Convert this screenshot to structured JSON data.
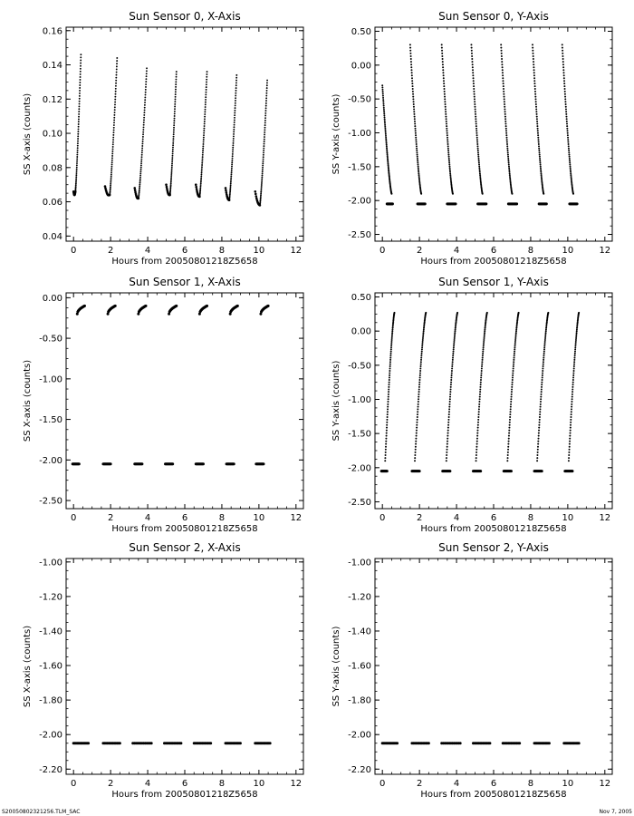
{
  "footer": {
    "left": "S20050802321256.TLM_SAC",
    "right": "Nov  7, 2005"
  },
  "chart_data": [
    {
      "type": "scatter",
      "title": "Sun Sensor 0, X-Axis",
      "xlabel": "Hours from 20050801218Z5658",
      "ylabel": "SS X-axis (counts)",
      "xlim": [
        -0.4,
        12.4
      ],
      "ylim": [
        0.037,
        0.162
      ],
      "xticks": [
        0,
        2,
        4,
        6,
        8,
        10,
        12
      ],
      "xtick_labels": [
        "0",
        "2",
        "4",
        "6",
        "8",
        "10",
        "12"
      ],
      "yticks": [
        0.04,
        0.06,
        0.08,
        0.1,
        0.12,
        0.14,
        0.16
      ],
      "ytick_labels": [
        "0.04",
        "0.06",
        "0.08",
        "0.10",
        "0.12",
        "0.14",
        "0.16"
      ],
      "segments": [
        {
          "dip": [
            0.0,
            0.1,
            0.066,
            0.066
          ],
          "rise": [
            0.1,
            0.4,
            0.066,
            0.146
          ]
        },
        {
          "dip": [
            1.7,
            1.95,
            0.069,
            0.064
          ],
          "rise": [
            1.95,
            2.35,
            0.064,
            0.144
          ]
        },
        {
          "dip": [
            3.3,
            3.5,
            0.068,
            0.062
          ],
          "rise": [
            3.5,
            3.95,
            0.062,
            0.138
          ]
        },
        {
          "dip": [
            5.0,
            5.2,
            0.07,
            0.064
          ],
          "rise": [
            5.2,
            5.55,
            0.064,
            0.136
          ]
        },
        {
          "dip": [
            6.6,
            6.8,
            0.07,
            0.063
          ],
          "rise": [
            6.8,
            7.2,
            0.063,
            0.136
          ]
        },
        {
          "dip": [
            8.2,
            8.4,
            0.068,
            0.061
          ],
          "rise": [
            8.4,
            8.8,
            0.061,
            0.134
          ]
        },
        {
          "dip": [
            9.8,
            10.05,
            0.066,
            0.058
          ],
          "rise": [
            10.05,
            10.45,
            0.058,
            0.131
          ]
        }
      ]
    },
    {
      "type": "scatter",
      "title": "Sun Sensor 0, Y-Axis",
      "xlabel": "Hours from 20050801218Z5658",
      "ylabel": "SS Y-axis (counts)",
      "xlim": [
        -0.4,
        12.4
      ],
      "ylim": [
        -2.6,
        0.56
      ],
      "xticks": [
        0,
        2,
        4,
        6,
        8,
        10,
        12
      ],
      "xtick_labels": [
        "0",
        "2",
        "4",
        "6",
        "8",
        "10",
        "12"
      ],
      "yticks": [
        0.5,
        0.0,
        -0.5,
        -1.0,
        -1.5,
        -2.0,
        -2.5
      ],
      "ytick_labels": [
        "0.50",
        "0.00",
        "-0.50",
        "-1.00",
        "-1.50",
        "-2.00",
        "-2.50"
      ],
      "curves": [
        {
          "x": [
            0.0,
            0.5
          ],
          "y": [
            -0.3,
            -1.9
          ]
        },
        {
          "x": [
            1.5,
            2.1
          ],
          "y": [
            0.3,
            -1.9
          ]
        },
        {
          "x": [
            3.2,
            3.8
          ],
          "y": [
            0.3,
            -1.9
          ]
        },
        {
          "x": [
            4.8,
            5.4
          ],
          "y": [
            0.3,
            -1.9
          ]
        },
        {
          "x": [
            6.4,
            7.0
          ],
          "y": [
            0.3,
            -1.9
          ]
        },
        {
          "x": [
            8.1,
            8.7
          ],
          "y": [
            0.3,
            -1.9
          ]
        },
        {
          "x": [
            9.7,
            10.3
          ],
          "y": [
            0.3,
            -1.9
          ]
        }
      ],
      "floor": {
        "y": -2.05,
        "ranges": [
          [
            0.25,
            0.55
          ],
          [
            1.9,
            2.3
          ],
          [
            3.5,
            3.95
          ],
          [
            5.15,
            5.6
          ],
          [
            6.8,
            7.25
          ],
          [
            8.45,
            8.85
          ],
          [
            10.1,
            10.5
          ]
        ]
      }
    },
    {
      "type": "scatter",
      "title": "Sun Sensor 1, X-Axis",
      "xlabel": "Hours from 20050801218Z5658",
      "ylabel": "SS X-axis (counts)",
      "xlim": [
        -0.4,
        12.4
      ],
      "ylim": [
        -2.6,
        0.06
      ],
      "xticks": [
        0,
        2,
        4,
        6,
        8,
        10,
        12
      ],
      "xtick_labels": [
        "0",
        "2",
        "4",
        "6",
        "8",
        "10",
        "12"
      ],
      "yticks": [
        0.0,
        -0.5,
        -1.0,
        -1.5,
        -2.0,
        -2.5
      ],
      "ytick_labels": [
        "0.00",
        "-0.50",
        "-1.00",
        "-1.50",
        "-2.00",
        "-2.50"
      ],
      "arcs": [
        {
          "x0": 0.2,
          "x1": 0.6,
          "y0": -0.2,
          "y1": -0.1
        },
        {
          "x0": 1.85,
          "x1": 2.25,
          "y0": -0.2,
          "y1": -0.1
        },
        {
          "x0": 3.5,
          "x1": 3.9,
          "y0": -0.2,
          "y1": -0.1
        },
        {
          "x0": 5.15,
          "x1": 5.55,
          "y0": -0.2,
          "y1": -0.1
        },
        {
          "x0": 6.8,
          "x1": 7.2,
          "y0": -0.2,
          "y1": -0.1
        },
        {
          "x0": 8.45,
          "x1": 8.85,
          "y0": -0.2,
          "y1": -0.1
        },
        {
          "x0": 10.1,
          "x1": 10.5,
          "y0": -0.2,
          "y1": -0.1
        }
      ],
      "floor": {
        "y": -2.05,
        "ranges": [
          [
            -0.05,
            0.3
          ],
          [
            1.6,
            2.0
          ],
          [
            3.3,
            3.7
          ],
          [
            4.95,
            5.35
          ],
          [
            6.6,
            7.0
          ],
          [
            8.25,
            8.65
          ],
          [
            9.85,
            10.25
          ]
        ]
      }
    },
    {
      "type": "scatter",
      "title": "Sun Sensor 1, Y-Axis",
      "xlabel": "Hours from 20050801218Z5658",
      "ylabel": "SS Y-axis (counts)",
      "xlim": [
        -0.4,
        12.4
      ],
      "ylim": [
        -2.6,
        0.56
      ],
      "xticks": [
        0,
        2,
        4,
        6,
        8,
        10,
        12
      ],
      "xtick_labels": [
        "0",
        "2",
        "4",
        "6",
        "8",
        "10",
        "12"
      ],
      "yticks": [
        0.5,
        0.0,
        -0.5,
        -1.0,
        -1.5,
        -2.0,
        -2.5
      ],
      "ytick_labels": [
        "0.50",
        "0.00",
        "-0.50",
        "-1.00",
        "-1.50",
        "-2.00",
        "-2.50"
      ],
      "curves": [
        {
          "x": [
            0.15,
            0.65
          ],
          "y": [
            -1.9,
            0.27
          ]
        },
        {
          "x": [
            1.75,
            2.35
          ],
          "y": [
            -1.9,
            0.27
          ]
        },
        {
          "x": [
            3.45,
            4.05
          ],
          "y": [
            -1.9,
            0.27
          ]
        },
        {
          "x": [
            5.05,
            5.65
          ],
          "y": [
            -1.9,
            0.27
          ]
        },
        {
          "x": [
            6.75,
            7.35
          ],
          "y": [
            -1.9,
            0.27
          ]
        },
        {
          "x": [
            8.35,
            8.95
          ],
          "y": [
            -1.9,
            0.27
          ]
        },
        {
          "x": [
            10.05,
            10.6
          ],
          "y": [
            -1.9,
            0.27
          ]
        }
      ],
      "floor": {
        "y": -2.05,
        "ranges": [
          [
            -0.05,
            0.25
          ],
          [
            1.6,
            2.0
          ],
          [
            3.25,
            3.65
          ],
          [
            4.9,
            5.3
          ],
          [
            6.55,
            6.95
          ],
          [
            8.2,
            8.6
          ],
          [
            9.85,
            10.25
          ]
        ]
      }
    },
    {
      "type": "scatter",
      "title": "Sun Sensor 2, X-Axis",
      "xlabel": "Hours from 20050801218Z5658",
      "ylabel": "SS X-axis (counts)",
      "xlim": [
        -0.4,
        12.4
      ],
      "ylim": [
        -2.23,
        -0.98
      ],
      "xticks": [
        0,
        2,
        4,
        6,
        8,
        10,
        12
      ],
      "xtick_labels": [
        "0",
        "2",
        "4",
        "6",
        "8",
        "10",
        "12"
      ],
      "yticks": [
        -1.0,
        -1.2,
        -1.4,
        -1.6,
        -1.8,
        -2.0,
        -2.2
      ],
      "ytick_labels": [
        "-1.00",
        "-1.20",
        "-1.40",
        "-1.60",
        "-1.80",
        "-2.00",
        "-2.20"
      ],
      "floor": {
        "y": -2.05,
        "ranges": [
          [
            0.0,
            0.8
          ],
          [
            1.6,
            2.5
          ],
          [
            3.2,
            4.2
          ],
          [
            4.9,
            5.8
          ],
          [
            6.5,
            7.4
          ],
          [
            8.2,
            9.0
          ],
          [
            9.8,
            10.6
          ]
        ]
      }
    },
    {
      "type": "scatter",
      "title": "Sun Sensor 2, Y-Axis",
      "xlabel": "Hours from 20050801218Z5658",
      "ylabel": "SS Y-axis (counts)",
      "xlim": [
        -0.4,
        12.4
      ],
      "ylim": [
        -2.23,
        -0.98
      ],
      "xticks": [
        0,
        2,
        4,
        6,
        8,
        10,
        12
      ],
      "xtick_labels": [
        "0",
        "2",
        "4",
        "6",
        "8",
        "10",
        "12"
      ],
      "yticks": [
        -1.0,
        -1.2,
        -1.4,
        -1.6,
        -1.8,
        -2.0,
        -2.2
      ],
      "ytick_labels": [
        "-1.00",
        "-1.20",
        "-1.40",
        "-1.60",
        "-1.80",
        "-2.00",
        "-2.20"
      ],
      "floor": {
        "y": -2.05,
        "ranges": [
          [
            0.0,
            0.8
          ],
          [
            1.6,
            2.5
          ],
          [
            3.2,
            4.2
          ],
          [
            4.9,
            5.8
          ],
          [
            6.5,
            7.4
          ],
          [
            8.2,
            9.0
          ],
          [
            9.8,
            10.6
          ]
        ]
      }
    }
  ]
}
